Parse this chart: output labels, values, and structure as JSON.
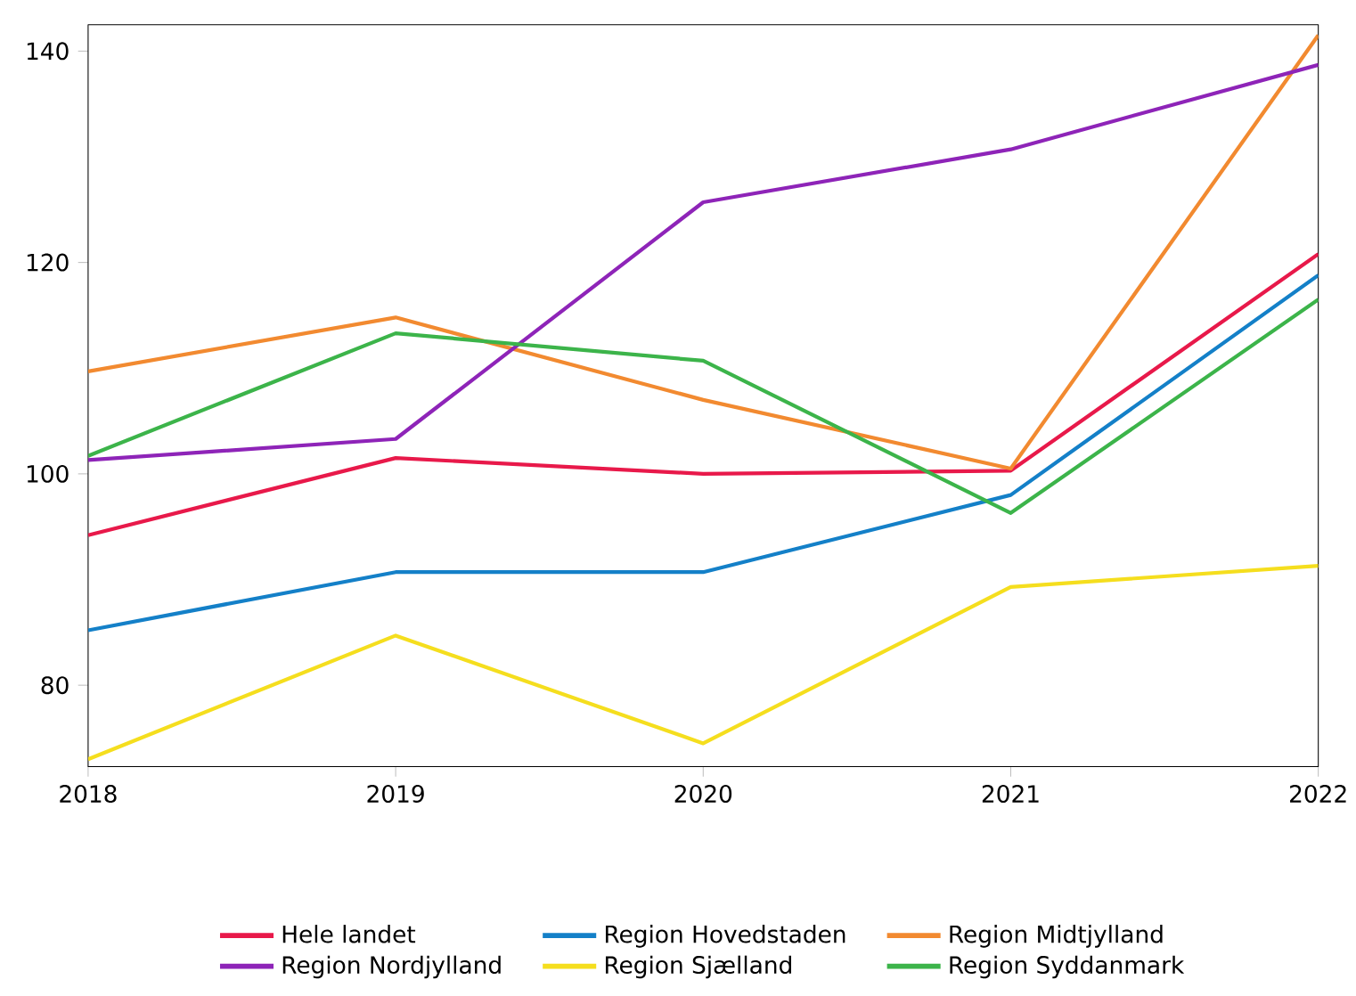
{
  "chart_data": {
    "type": "line",
    "x": [
      2018,
      2019,
      2020,
      2021,
      2022
    ],
    "xlim": [
      2018,
      2022
    ],
    "xticks": [
      2018,
      2019,
      2020,
      2021,
      2022
    ],
    "ylim": [
      72.3,
      142.5
    ],
    "yticks": [
      80,
      100,
      120,
      140
    ],
    "grid": false,
    "legend": "bottom",
    "marker": "none",
    "line_style": "solid",
    "series": [
      {
        "name": "Hele landet",
        "color": "#e8194a",
        "values": [
          94.2,
          101.5,
          100,
          100.3,
          120.8
        ]
      },
      {
        "name": "Region Hovedstaden",
        "color": "#1480c8",
        "values": [
          85.2,
          90.7,
          90.7,
          98,
          118.8
        ]
      },
      {
        "name": "Region Midtjylland",
        "color": "#f28a30",
        "values": [
          109.7,
          114.8,
          107,
          100.5,
          141.5
        ]
      },
      {
        "name": "Region Nordjylland",
        "color": "#8e24b8",
        "values": [
          101.3,
          103.3,
          125.7,
          130.7,
          138.7
        ]
      },
      {
        "name": "Region Sjælland",
        "color": "#f5de1e",
        "values": [
          73,
          84.7,
          74.5,
          89.3,
          91.3
        ]
      },
      {
        "name": "Region Syddanmark",
        "color": "#3cb44a",
        "values": [
          101.7,
          113.3,
          110.7,
          96.3,
          116.5
        ]
      }
    ]
  }
}
